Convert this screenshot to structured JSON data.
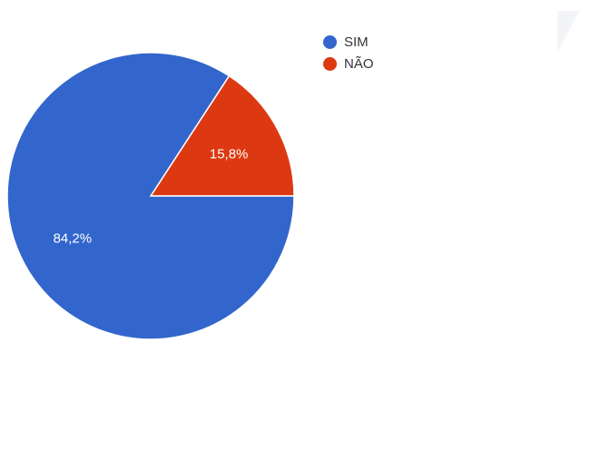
{
  "chart_data": {
    "type": "pie",
    "slices": [
      {
        "label": "SIM",
        "value": 84.2,
        "display": "84,2%",
        "color": "#3366cc"
      },
      {
        "label": "NÃO",
        "value": 15.8,
        "display": "15,8%",
        "color": "#dc3912"
      }
    ],
    "legend": "top-right",
    "start": "3 o'clock, counter-clockwise"
  }
}
